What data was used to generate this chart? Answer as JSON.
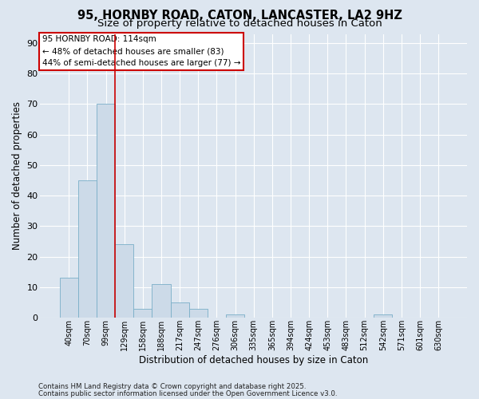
{
  "title_line1": "95, HORNBY ROAD, CATON, LANCASTER, LA2 9HZ",
  "title_line2": "Size of property relative to detached houses in Caton",
  "xlabel": "Distribution of detached houses by size in Caton",
  "ylabel": "Number of detached properties",
  "bar_values": [
    13,
    45,
    70,
    24,
    3,
    11,
    5,
    3,
    0,
    1,
    0,
    0,
    0,
    0,
    0,
    0,
    0,
    1,
    0,
    0,
    0
  ],
  "bar_labels": [
    "40sqm",
    "70sqm",
    "99sqm",
    "129sqm",
    "158sqm",
    "188sqm",
    "217sqm",
    "247sqm",
    "276sqm",
    "306sqm",
    "335sqm",
    "365sqm",
    "394sqm",
    "424sqm",
    "453sqm",
    "483sqm",
    "512sqm",
    "542sqm",
    "571sqm",
    "601sqm",
    "630sqm"
  ],
  "bar_color": "#ccdae8",
  "bar_edgecolor": "#7aaec8",
  "bar_width": 1.0,
  "ylim": [
    0,
    93
  ],
  "yticks": [
    0,
    10,
    20,
    30,
    40,
    50,
    60,
    70,
    80,
    90
  ],
  "red_line_x": 2.5,
  "annotation_text": "95 HORNBY ROAD: 114sqm\n← 48% of detached houses are smaller (83)\n44% of semi-detached houses are larger (77) →",
  "annotation_box_color": "#ffffff",
  "annotation_box_edgecolor": "#cc0000",
  "footer_line1": "Contains HM Land Registry data © Crown copyright and database right 2025.",
  "footer_line2": "Contains public sector information licensed under the Open Government Licence v3.0.",
  "background_color": "#dde6f0",
  "grid_color": "#ffffff",
  "title_fontsize": 10.5,
  "subtitle_fontsize": 9.5
}
